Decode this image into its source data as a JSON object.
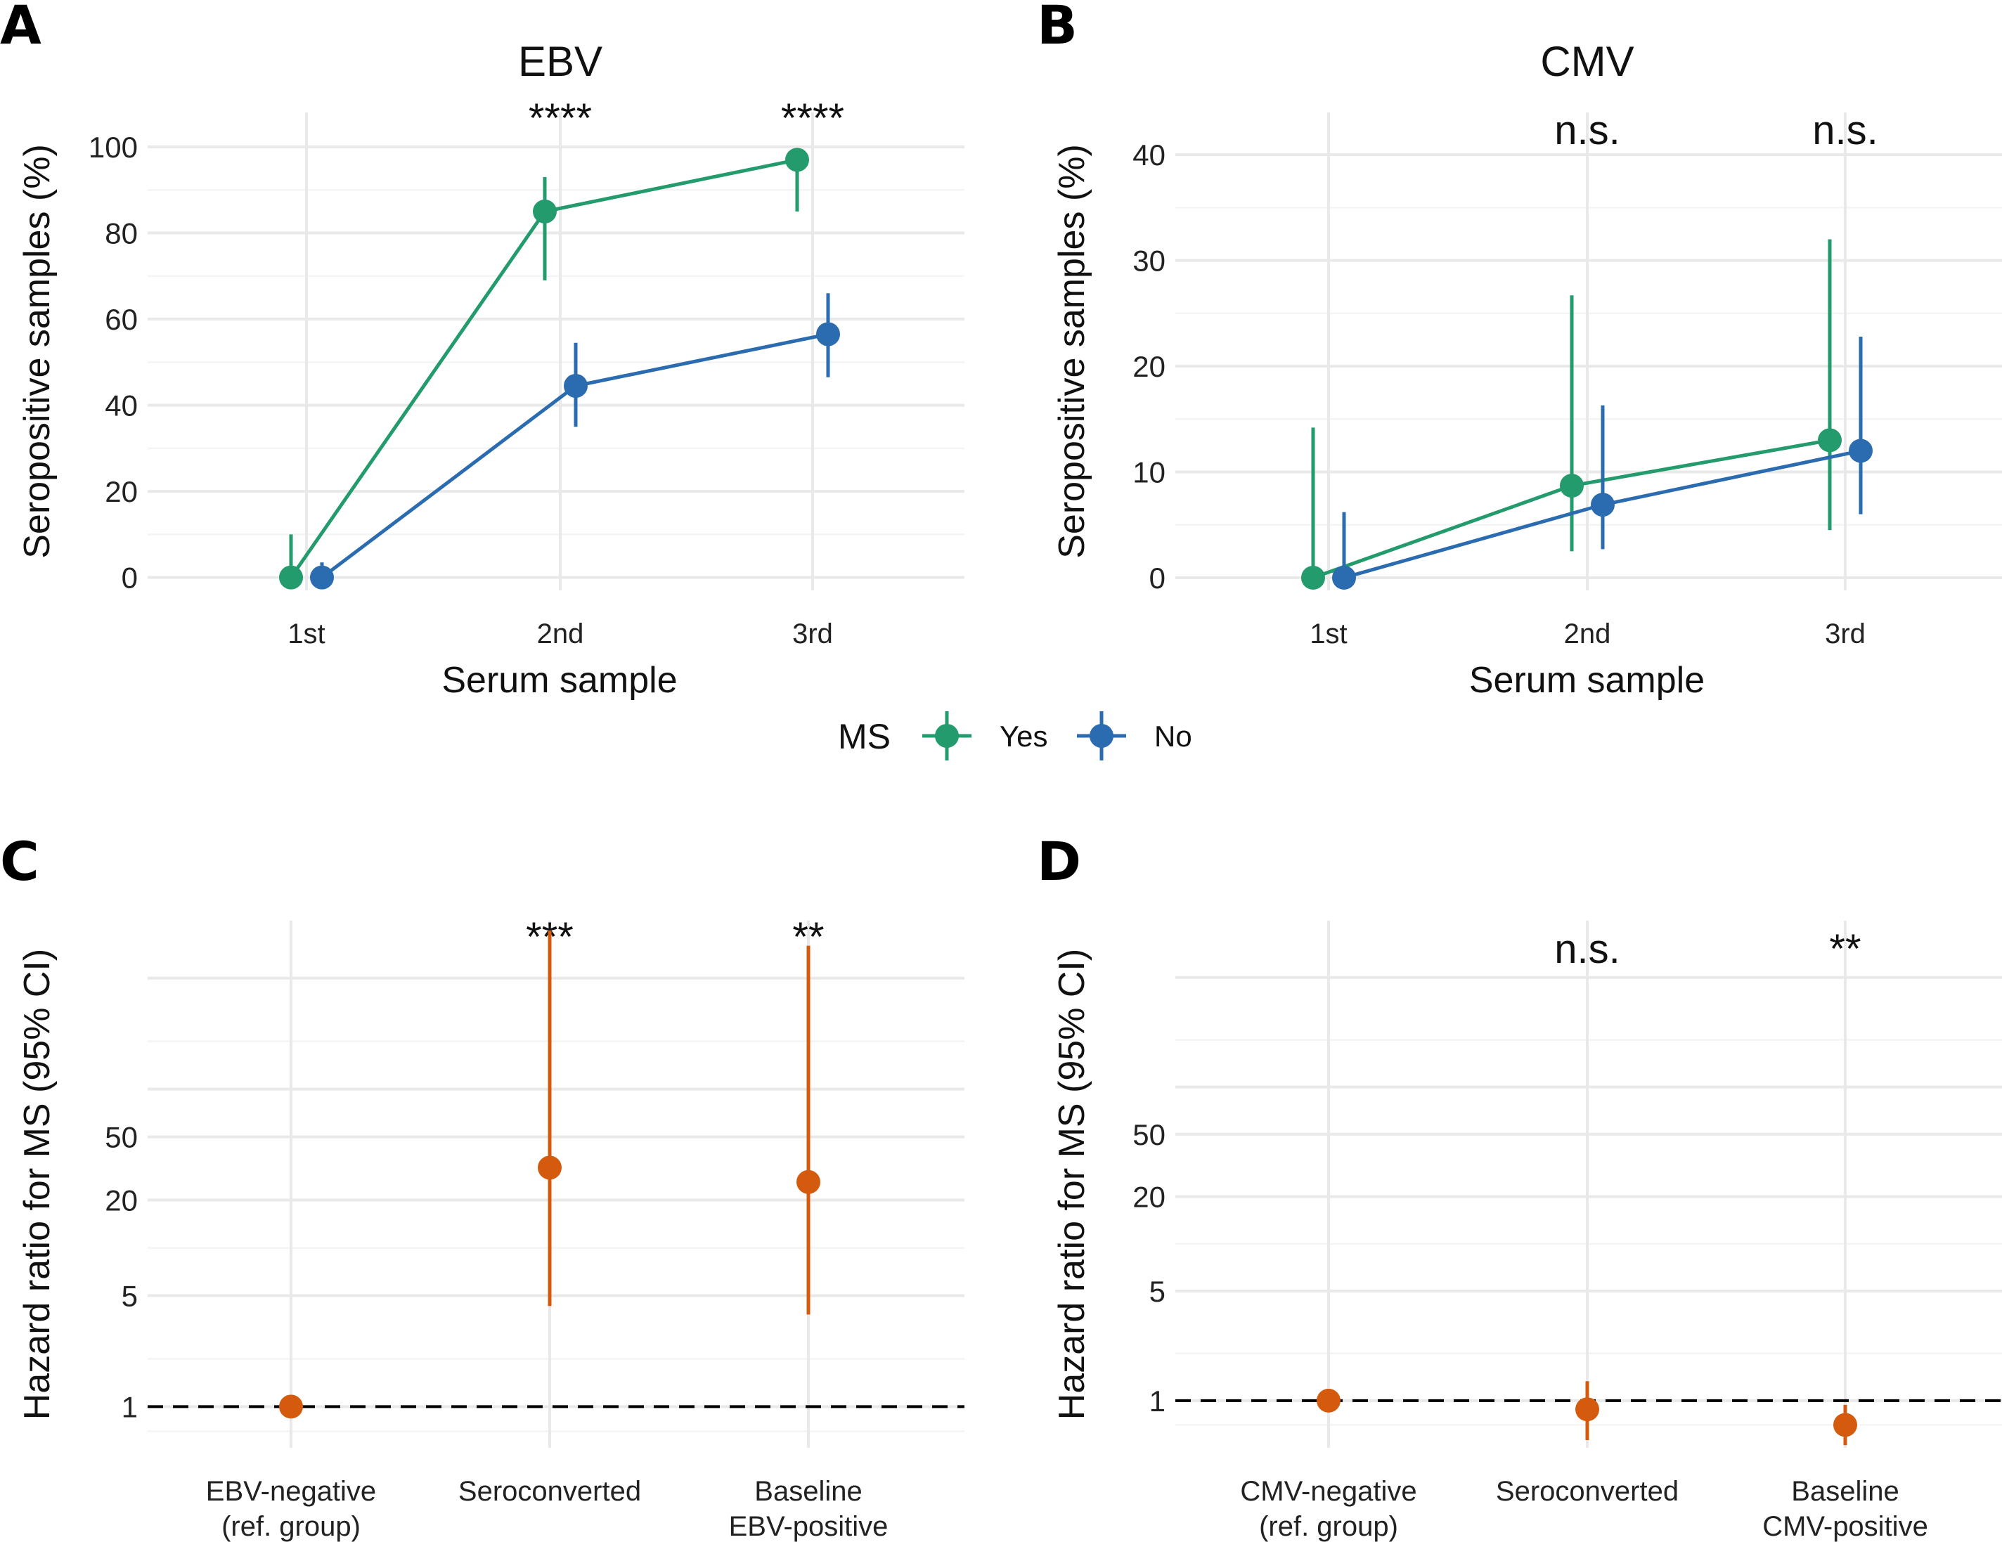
{
  "panels": {
    "A": {
      "letter": "A",
      "title": "EBV"
    },
    "B": {
      "letter": "B",
      "title": "CMV"
    },
    "C": {
      "letter": "C",
      "title": ""
    },
    "D": {
      "letter": "D",
      "title": ""
    }
  },
  "legend": {
    "title": "MS",
    "entries": [
      {
        "label": "Yes",
        "color": "#239b6d"
      },
      {
        "label": "No",
        "color": "#2b6bb0"
      }
    ]
  },
  "chart_data": [
    {
      "id": "A",
      "type": "line",
      "title": "EBV",
      "xlabel": "Serum sample",
      "ylabel": "Seropositive samples (%)",
      "categories": [
        "1st",
        "2nd",
        "3rd"
      ],
      "ylim": [
        -3,
        108
      ],
      "yticks": [
        0,
        20,
        40,
        60,
        80,
        100
      ],
      "grid": true,
      "annotations": [
        "",
        "****",
        "****"
      ],
      "series": [
        {
          "name": "Yes",
          "color": "#239b6d",
          "values": [
            0,
            85,
            97
          ],
          "lower": [
            0,
            69,
            85
          ],
          "upper": [
            10,
            93,
            97
          ]
        },
        {
          "name": "No",
          "color": "#2b6bb0",
          "values": [
            0,
            44.5,
            56.5
          ],
          "lower": [
            0,
            35,
            46.5
          ],
          "upper": [
            3.5,
            54.5,
            66
          ]
        }
      ]
    },
    {
      "id": "B",
      "type": "line",
      "title": "CMV",
      "xlabel": "Serum sample",
      "ylabel": "Seropositive samples (%)",
      "categories": [
        "1st",
        "2nd",
        "3rd"
      ],
      "ylim": [
        -1.2,
        44
      ],
      "yticks": [
        0,
        10,
        20,
        30,
        40
      ],
      "grid": true,
      "annotations": [
        "",
        "n.s.",
        "n.s."
      ],
      "series": [
        {
          "name": "Yes",
          "color": "#239b6d",
          "values": [
            0,
            8.7,
            13
          ],
          "lower": [
            0,
            2.5,
            4.5
          ],
          "upper": [
            14.2,
            26.7,
            32
          ]
        },
        {
          "name": "No",
          "color": "#2b6bb0",
          "values": [
            0,
            6.9,
            12
          ],
          "lower": [
            0,
            2.7,
            6
          ],
          "upper": [
            6.2,
            16.3,
            22.8
          ]
        }
      ]
    },
    {
      "id": "C",
      "type": "scatter",
      "xlabel": "",
      "ylabel": "Hazard ratio for MS (95% CI)",
      "categories": [
        [
          "EBV-negative",
          "(ref. group)"
        ],
        [
          "Seroconverted"
        ],
        [
          "Baseline",
          "EBV-positive"
        ]
      ],
      "yscale": "log",
      "ylim": [
        0.55,
        1150
      ],
      "yticks": [
        1,
        5,
        20,
        50
      ],
      "reference_line": 1,
      "grid": true,
      "annotations": [
        "",
        "***",
        "**"
      ],
      "color": "#d45b0e",
      "values": [
        1,
        32,
        26
      ],
      "lower": [
        null,
        4.3,
        3.8
      ],
      "upper": [
        null,
        1000,
        800
      ]
    },
    {
      "id": "D",
      "type": "scatter",
      "xlabel": "",
      "ylabel": "Hazard ratio for MS (95% CI)",
      "categories": [
        [
          "CMV-negative",
          "(ref. group)"
        ],
        [
          "Seroconverted"
        ],
        [
          "Baseline",
          "CMV-positive"
        ]
      ],
      "yscale": "log",
      "ylim": [
        0.5,
        1150
      ],
      "yticks": [
        1,
        5,
        20,
        50
      ],
      "reference_line": 1,
      "grid": true,
      "annotations": [
        "",
        "n.s.",
        "**"
      ],
      "color": "#d45b0e",
      "values": [
        1,
        0.88,
        0.7
      ],
      "lower": [
        null,
        0.56,
        0.52
      ],
      "upper": [
        null,
        1.33,
        0.94
      ]
    }
  ]
}
